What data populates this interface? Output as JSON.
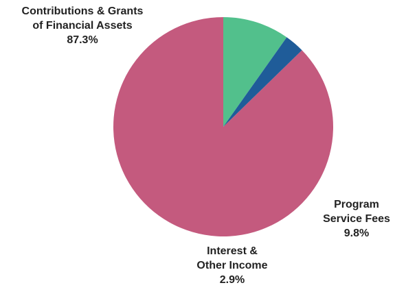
{
  "chart_data": {
    "type": "pie",
    "slices": [
      {
        "label_lines": [
          "Contributions & Grants",
          "of Financial Assets"
        ],
        "value": 87.3,
        "value_label": "87.3%",
        "color": "#c45a7e"
      },
      {
        "label_lines": [
          "Program",
          "Service Fees"
        ],
        "value": 9.8,
        "value_label": "9.8%",
        "color": "#52c08c"
      },
      {
        "label_lines": [
          "Interest &",
          "Other Income"
        ],
        "value": 2.9,
        "value_label": "2.9%",
        "color": "#1f5c99"
      }
    ]
  }
}
